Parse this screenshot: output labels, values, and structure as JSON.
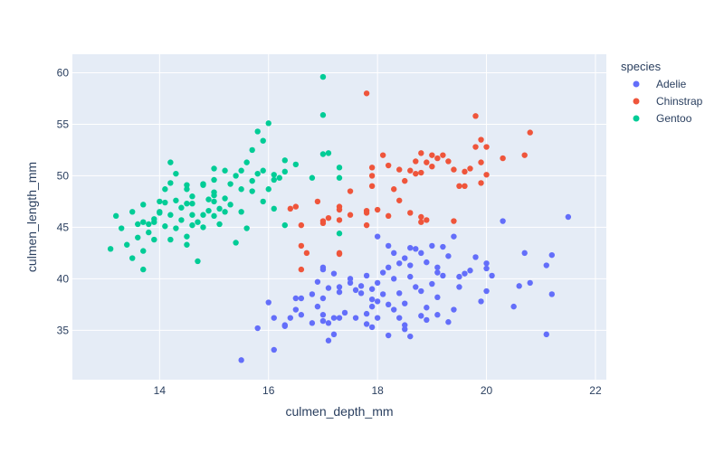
{
  "chart_data": {
    "type": "scatter",
    "xlabel": "culmen_depth_mm",
    "ylabel": "culmen_length_mm",
    "xlim": [
      12.4,
      22.2
    ],
    "ylim": [
      30.2,
      61.8
    ],
    "xticks": [
      14,
      16,
      18,
      20,
      22
    ],
    "yticks": [
      35,
      40,
      45,
      50,
      55,
      60
    ],
    "grid": true,
    "legend": {
      "title": "species",
      "placement": "top-right"
    },
    "series": [
      {
        "name": "Adelie",
        "color": "#636efa",
        "points": [
          [
            15.5,
            32.1
          ],
          [
            16.1,
            33.1
          ],
          [
            16.8,
            35.7
          ],
          [
            16.4,
            36.2
          ],
          [
            15.8,
            35.2
          ],
          [
            16.3,
            35.5
          ],
          [
            17.1,
            34.0
          ],
          [
            17.2,
            34.6
          ],
          [
            17.3,
            36.2
          ],
          [
            16.0,
            37.7
          ],
          [
            16.1,
            36.2
          ],
          [
            16.5,
            37.0
          ],
          [
            16.6,
            36.5
          ],
          [
            16.9,
            37.3
          ],
          [
            17.0,
            35.9
          ],
          [
            17.0,
            36.5
          ],
          [
            17.1,
            35.7
          ],
          [
            17.2,
            36.2
          ],
          [
            17.4,
            36.7
          ],
          [
            17.6,
            36.2
          ],
          [
            17.8,
            35.6
          ],
          [
            17.9,
            35.3
          ],
          [
            18.0,
            36.2
          ],
          [
            18.2,
            34.5
          ],
          [
            18.4,
            36.2
          ],
          [
            18.5,
            35.1
          ],
          [
            18.6,
            34.4
          ],
          [
            16.5,
            38.1
          ],
          [
            16.8,
            38.5
          ],
          [
            16.9,
            39.7
          ],
          [
            17.0,
            38.1
          ],
          [
            17.1,
            39.1
          ],
          [
            17.2,
            40.5
          ],
          [
            17.0,
            40.9
          ],
          [
            17.3,
            39.2
          ],
          [
            17.5,
            39.6
          ],
          [
            17.6,
            38.9
          ],
          [
            17.7,
            39.3
          ],
          [
            17.8,
            40.3
          ],
          [
            17.9,
            38.0
          ],
          [
            18.0,
            39.6
          ],
          [
            18.1,
            38.5
          ],
          [
            18.0,
            37.8
          ],
          [
            17.9,
            37.3
          ],
          [
            17.8,
            36.6
          ],
          [
            18.1,
            40.6
          ],
          [
            18.2,
            41.1
          ],
          [
            18.4,
            41.5
          ],
          [
            18.2,
            37.5
          ],
          [
            18.3,
            37.0
          ],
          [
            18.4,
            38.6
          ],
          [
            18.5,
            37.6
          ],
          [
            18.6,
            40.2
          ],
          [
            18.7,
            39.2
          ],
          [
            18.8,
            38.8
          ],
          [
            18.9,
            37.2
          ],
          [
            18.9,
            36.0
          ],
          [
            19.0,
            39.5
          ],
          [
            19.1,
            38.2
          ],
          [
            19.1,
            41.1
          ],
          [
            19.2,
            40.3
          ],
          [
            19.0,
            43.2
          ],
          [
            19.2,
            43.1
          ],
          [
            18.8,
            42.5
          ],
          [
            18.5,
            42.0
          ],
          [
            18.3,
            42.5
          ],
          [
            18.0,
            44.1
          ],
          [
            18.2,
            43.2
          ],
          [
            18.6,
            41.3
          ],
          [
            18.7,
            42.9
          ],
          [
            18.9,
            41.6
          ],
          [
            19.3,
            35.8
          ],
          [
            19.4,
            37.0
          ],
          [
            19.5,
            39.2
          ],
          [
            19.6,
            40.5
          ],
          [
            19.7,
            40.8
          ],
          [
            19.8,
            42.1
          ],
          [
            19.9,
            37.8
          ],
          [
            20.0,
            38.8
          ],
          [
            20.0,
            41.0
          ],
          [
            20.1,
            40.3
          ],
          [
            20.3,
            45.6
          ],
          [
            20.5,
            37.3
          ],
          [
            20.6,
            39.3
          ],
          [
            20.7,
            42.5
          ],
          [
            20.8,
            39.6
          ],
          [
            21.1,
            41.3
          ],
          [
            21.1,
            34.6
          ],
          [
            21.2,
            38.5
          ],
          [
            21.2,
            42.3
          ],
          [
            21.5,
            46.0
          ],
          [
            18.6,
            43.0
          ],
          [
            19.3,
            42.2
          ],
          [
            19.1,
            36.5
          ],
          [
            17.9,
            39.0
          ],
          [
            17.7,
            38.6
          ],
          [
            17.5,
            40.0
          ],
          [
            16.3,
            35.4
          ],
          [
            16.6,
            38.1
          ],
          [
            18.5,
            35.5
          ],
          [
            18.8,
            36.4
          ],
          [
            19.1,
            40.6
          ],
          [
            19.5,
            40.2
          ],
          [
            20.0,
            41.5
          ],
          [
            17.0,
            41.1
          ],
          [
            17.3,
            38.7
          ],
          [
            18.3,
            40.0
          ],
          [
            19.4,
            44.1
          ]
        ]
      },
      {
        "name": "Chinstrap",
        "color": "#ef553b",
        "points": [
          [
            16.4,
            46.8
          ],
          [
            16.5,
            47.0
          ],
          [
            16.6,
            45.2
          ],
          [
            16.6,
            43.2
          ],
          [
            16.6,
            40.9
          ],
          [
            16.7,
            42.5
          ],
          [
            16.9,
            47.5
          ],
          [
            17.0,
            45.6
          ],
          [
            17.0,
            45.4
          ],
          [
            17.1,
            45.9
          ],
          [
            17.3,
            42.4
          ],
          [
            17.3,
            42.5
          ],
          [
            17.3,
            47.0
          ],
          [
            17.3,
            45.7
          ],
          [
            17.5,
            46.2
          ],
          [
            17.5,
            48.5
          ],
          [
            17.8,
            46.4
          ],
          [
            17.8,
            46.6
          ],
          [
            17.8,
            45.2
          ],
          [
            17.8,
            58.0
          ],
          [
            17.9,
            49.0
          ],
          [
            17.9,
            50.0
          ],
          [
            17.9,
            50.8
          ],
          [
            18.0,
            46.7
          ],
          [
            18.1,
            52.0
          ],
          [
            18.2,
            46.1
          ],
          [
            18.2,
            51.0
          ],
          [
            18.3,
            48.7
          ],
          [
            18.4,
            50.6
          ],
          [
            18.5,
            49.5
          ],
          [
            18.6,
            50.5
          ],
          [
            18.6,
            46.4
          ],
          [
            18.7,
            51.4
          ],
          [
            18.8,
            52.2
          ],
          [
            18.8,
            50.3
          ],
          [
            18.8,
            45.5
          ],
          [
            18.8,
            46.0
          ],
          [
            18.9,
            51.3
          ],
          [
            18.9,
            45.7
          ],
          [
            19.0,
            52.0
          ],
          [
            19.0,
            50.9
          ],
          [
            19.1,
            51.7
          ],
          [
            19.2,
            52.0
          ],
          [
            19.3,
            51.4
          ],
          [
            19.4,
            50.6
          ],
          [
            19.4,
            45.6
          ],
          [
            19.5,
            49.0
          ],
          [
            19.6,
            50.4
          ],
          [
            19.6,
            49.0
          ],
          [
            19.7,
            50.7
          ],
          [
            19.8,
            52.8
          ],
          [
            19.9,
            51.3
          ],
          [
            19.9,
            49.3
          ],
          [
            20.0,
            50.1
          ],
          [
            20.3,
            51.7
          ],
          [
            20.7,
            52.0
          ],
          [
            20.8,
            54.2
          ],
          [
            19.8,
            55.8
          ],
          [
            19.9,
            53.5
          ],
          [
            20.0,
            52.8
          ],
          [
            18.7,
            50.2
          ],
          [
            18.4,
            47.6
          ],
          [
            17.3,
            46.7
          ]
        ]
      },
      {
        "name": "Gentoo",
        "color": "#00cc96",
        "points": [
          [
            13.1,
            42.9
          ],
          [
            13.2,
            46.1
          ],
          [
            13.3,
            44.9
          ],
          [
            13.5,
            42.0
          ],
          [
            13.4,
            43.3
          ],
          [
            13.5,
            46.5
          ],
          [
            13.7,
            40.9
          ],
          [
            13.7,
            42.7
          ],
          [
            13.7,
            45.5
          ],
          [
            13.7,
            47.2
          ],
          [
            13.8,
            44.5
          ],
          [
            13.8,
            45.3
          ],
          [
            13.9,
            45.8
          ],
          [
            13.9,
            43.8
          ],
          [
            13.6,
            44.0
          ],
          [
            13.9,
            45.5
          ],
          [
            14.0,
            46.4
          ],
          [
            14.0,
            47.5
          ],
          [
            14.1,
            45.1
          ],
          [
            14.1,
            48.7
          ],
          [
            14.2,
            46.2
          ],
          [
            14.2,
            43.8
          ],
          [
            14.2,
            51.3
          ],
          [
            14.2,
            49.3
          ],
          [
            14.3,
            47.6
          ],
          [
            14.3,
            44.9
          ],
          [
            14.3,
            50.2
          ],
          [
            14.4,
            45.7
          ],
          [
            14.4,
            46.9
          ],
          [
            14.5,
            43.3
          ],
          [
            14.5,
            44.1
          ],
          [
            14.5,
            47.3
          ],
          [
            14.5,
            49.1
          ],
          [
            14.5,
            48.7
          ],
          [
            14.6,
            45.2
          ],
          [
            14.6,
            46.2
          ],
          [
            14.6,
            47.3
          ],
          [
            14.6,
            48.0
          ],
          [
            14.7,
            45.5
          ],
          [
            14.7,
            41.7
          ],
          [
            14.8,
            49.1
          ],
          [
            14.8,
            45.0
          ],
          [
            14.9,
            46.6
          ],
          [
            14.9,
            47.7
          ],
          [
            15.0,
            46.1
          ],
          [
            15.0,
            47.5
          ],
          [
            15.0,
            49.6
          ],
          [
            15.0,
            50.7
          ],
          [
            15.0,
            48.4
          ],
          [
            15.1,
            46.8
          ],
          [
            15.1,
            45.3
          ],
          [
            15.2,
            50.5
          ],
          [
            15.2,
            46.5
          ],
          [
            15.3,
            49.2
          ],
          [
            15.3,
            47.2
          ],
          [
            15.4,
            43.5
          ],
          [
            15.5,
            48.7
          ],
          [
            15.5,
            46.5
          ],
          [
            15.5,
            50.5
          ],
          [
            15.6,
            44.9
          ],
          [
            15.7,
            49.5
          ],
          [
            15.7,
            52.5
          ],
          [
            15.8,
            54.3
          ],
          [
            15.8,
            50.2
          ],
          [
            15.9,
            47.5
          ],
          [
            15.9,
            50.5
          ],
          [
            15.9,
            53.4
          ],
          [
            16.0,
            48.7
          ],
          [
            16.0,
            55.1
          ],
          [
            16.1,
            49.6
          ],
          [
            16.1,
            50.1
          ],
          [
            16.1,
            46.8
          ],
          [
            16.2,
            49.8
          ],
          [
            16.3,
            50.4
          ],
          [
            16.3,
            51.5
          ],
          [
            16.3,
            45.2
          ],
          [
            16.5,
            51.1
          ],
          [
            15.6,
            51.3
          ],
          [
            15.2,
            47.8
          ],
          [
            14.8,
            49.2
          ],
          [
            14.1,
            47.4
          ],
          [
            17.0,
            52.1
          ],
          [
            17.0,
            55.9
          ],
          [
            17.0,
            59.6
          ],
          [
            17.1,
            52.2
          ],
          [
            17.3,
            44.4
          ],
          [
            17.3,
            49.8
          ],
          [
            17.3,
            50.8
          ],
          [
            16.8,
            49.8
          ],
          [
            15.0,
            48.1
          ],
          [
            14.0,
            46.5
          ],
          [
            13.6,
            45.3
          ],
          [
            14.8,
            46.2
          ],
          [
            15.4,
            50.0
          ],
          [
            15.7,
            48.5
          ]
        ]
      }
    ]
  }
}
